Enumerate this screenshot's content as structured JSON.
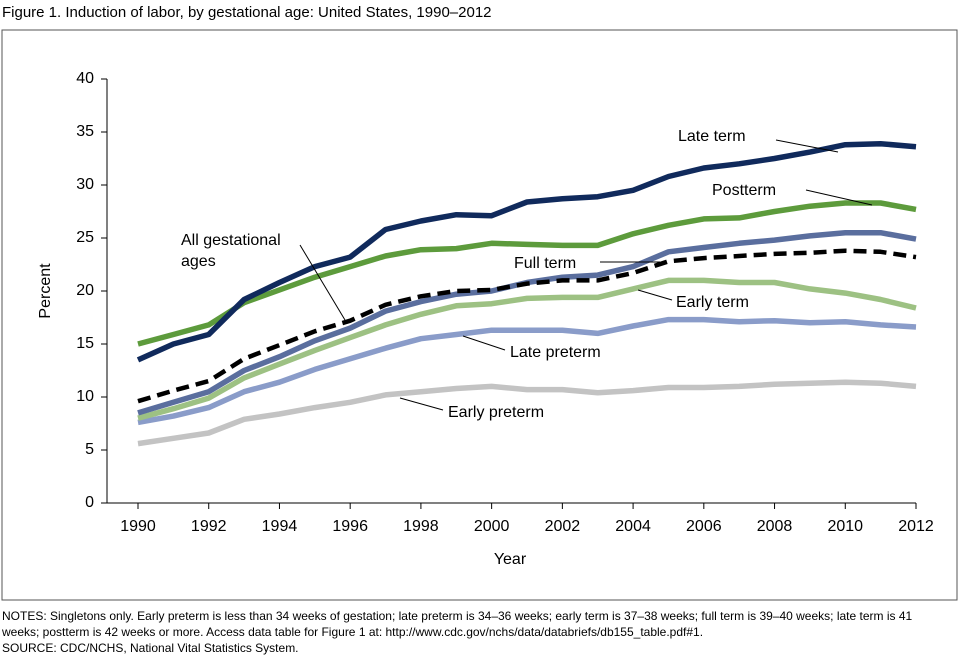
{
  "chart_data": {
    "type": "line",
    "title": "Figure 1. Induction of labor, by gestational age: United States, 1990–2012",
    "xlabel": "Year",
    "ylabel": "Percent",
    "x": [
      1990,
      1991,
      1992,
      1993,
      1994,
      1995,
      1996,
      1997,
      1998,
      1999,
      2000,
      2001,
      2002,
      2003,
      2004,
      2005,
      2006,
      2007,
      2008,
      2009,
      2010,
      2011,
      2012
    ],
    "xlim": [
      1990,
      2012
    ],
    "xticks": [
      1990,
      1992,
      1994,
      1996,
      1998,
      2000,
      2002,
      2004,
      2006,
      2008,
      2010,
      2012
    ],
    "ylim": [
      0,
      40
    ],
    "yticks": [
      0,
      5,
      10,
      15,
      20,
      25,
      30,
      35,
      40
    ],
    "series": [
      {
        "name": "Early preterm",
        "color": "#c3c3c3",
        "values": [
          5.6,
          6.1,
          6.6,
          7.9,
          8.4,
          9.0,
          9.5,
          10.2,
          10.5,
          10.8,
          11.0,
          10.7,
          10.7,
          10.4,
          10.6,
          10.9,
          10.9,
          11.0,
          11.2,
          11.3,
          11.4,
          11.3,
          11.0
        ]
      },
      {
        "name": "Late preterm",
        "color": "#8a9cc9",
        "values": [
          7.6,
          8.2,
          9.0,
          10.5,
          11.4,
          12.6,
          13.6,
          14.6,
          15.5,
          15.9,
          16.3,
          16.3,
          16.3,
          16.0,
          16.7,
          17.3,
          17.3,
          17.1,
          17.2,
          17.0,
          17.1,
          16.8,
          16.6
        ]
      },
      {
        "name": "Early term",
        "color": "#9dc183",
        "values": [
          8.0,
          8.9,
          9.9,
          11.8,
          13.1,
          14.4,
          15.6,
          16.8,
          17.8,
          18.6,
          18.8,
          19.3,
          19.4,
          19.4,
          20.2,
          21.0,
          21.0,
          20.8,
          20.8,
          20.2,
          19.8,
          19.2,
          18.4
        ]
      },
      {
        "name": "Full term",
        "color": "#5a6e9e",
        "values": [
          8.5,
          9.5,
          10.5,
          12.5,
          13.8,
          15.3,
          16.5,
          18.1,
          19.0,
          19.7,
          20.0,
          20.8,
          21.3,
          21.5,
          22.3,
          23.7,
          24.1,
          24.5,
          24.8,
          25.2,
          25.5,
          25.5,
          24.9
        ]
      },
      {
        "name": "Postterm",
        "color": "#5d9b3c",
        "values": [
          15.0,
          15.9,
          16.8,
          18.9,
          20.1,
          21.3,
          22.3,
          23.3,
          23.9,
          24.0,
          24.5,
          24.4,
          24.3,
          24.3,
          25.4,
          26.2,
          26.8,
          26.9,
          27.5,
          28.0,
          28.3,
          28.3,
          27.7
        ]
      },
      {
        "name": "Late term",
        "color": "#102a5c",
        "values": [
          13.5,
          15.0,
          15.9,
          19.2,
          20.8,
          22.3,
          23.2,
          25.8,
          26.6,
          27.2,
          27.1,
          28.4,
          28.7,
          28.9,
          29.5,
          30.8,
          31.6,
          32.0,
          32.5,
          33.1,
          33.8,
          33.9,
          33.6
        ]
      },
      {
        "name": "All gestational ages",
        "color": "#000000",
        "dashed": true,
        "values": [
          9.6,
          10.6,
          11.5,
          13.6,
          14.9,
          16.2,
          17.2,
          18.7,
          19.5,
          20.0,
          20.1,
          20.7,
          21.0,
          21.0,
          21.7,
          22.8,
          23.1,
          23.3,
          23.5,
          23.6,
          23.8,
          23.7,
          23.2
        ]
      }
    ]
  },
  "notes": "NOTES: Singletons only. Early preterm is less than 34 weeks of gestation; late preterm is 34–36 weeks; early term is 37–38 weeks; full term is 39–40 weeks; late term is 41 weeks; postterm is 42 weeks or more. Access data table for Figure 1 at: http://www.cdc.gov/nchs/data/databriefs/db155_table.pdf#1.",
  "source": "SOURCE: CDC/NCHS, National Vital Statistics System."
}
